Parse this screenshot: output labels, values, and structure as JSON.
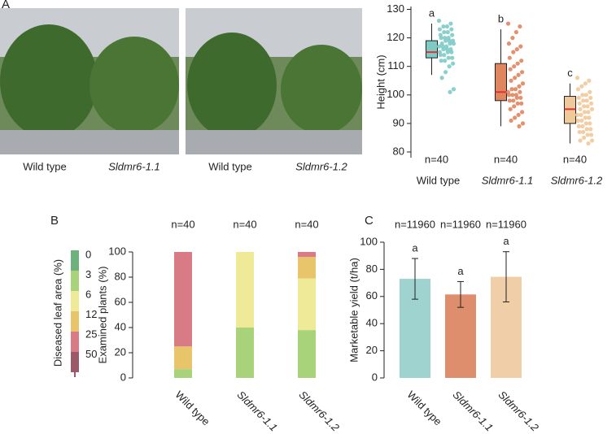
{
  "panel_labels": [
    "A",
    "B",
    "C"
  ],
  "photo_captions": [
    "Wild type",
    "Sldmr6-1.1",
    "Wild type",
    "Sldmr6-1.2"
  ],
  "chart_data": [
    {
      "type": "box",
      "ylabel": "Height (cm)",
      "categories": [
        "Wild type",
        "Sldmr6-1.1",
        "Sldmr6-1.2"
      ],
      "colors": [
        "#7ecbc6",
        "#e0865f",
        "#f0c99a"
      ],
      "median_color": "#e0303a",
      "boxes": [
        {
          "whisker_low": 107,
          "q1": 113,
          "median": 115,
          "q3": 119,
          "whisker_high": 125
        },
        {
          "whisker_low": 89,
          "q1": 98,
          "median": 101,
          "q3": 111,
          "whisker_high": 123
        },
        {
          "whisker_low": 83,
          "q1": 90,
          "median": 95,
          "q3": 99.5,
          "whisker_high": 104
        }
      ],
      "points": [
        [
          126,
          125,
          124,
          124,
          123,
          123,
          122,
          122,
          121,
          121,
          120,
          120,
          120,
          119,
          119,
          119,
          118,
          118,
          118,
          117,
          117,
          117,
          116,
          116,
          116,
          115,
          115,
          115,
          114,
          114,
          113,
          113,
          112,
          112,
          111,
          110,
          108,
          106,
          102,
          101
        ],
        [
          125,
          124,
          122,
          120,
          118,
          117,
          116,
          115,
          113,
          112,
          111,
          110,
          109,
          108,
          107,
          106,
          105,
          104,
          103,
          102,
          102,
          101,
          101,
          100,
          100,
          100,
          99,
          99,
          98,
          98,
          97,
          97,
          96,
          95,
          94,
          93,
          92,
          91,
          90,
          89
        ],
        [
          106,
          105,
          104,
          103,
          102,
          101,
          100,
          100,
          99,
          99,
          98,
          98,
          97,
          97,
          96,
          96,
          95,
          95,
          94,
          94,
          93,
          93,
          92,
          92,
          91,
          91,
          90,
          90,
          89,
          89,
          88,
          88,
          87,
          87,
          86,
          86,
          85,
          84,
          84,
          83
        ]
      ],
      "letters": [
        "a",
        "b",
        "c"
      ],
      "n_labels": [
        "n=40",
        "n=40",
        "n=40"
      ],
      "ylim": [
        78,
        131
      ],
      "yticks": [
        80,
        90,
        100,
        110,
        120,
        130
      ]
    },
    {
      "type": "stacked_bar",
      "ylabel": "Examined plants (%)",
      "categories": [
        "Wild type",
        "Sldmr6-1.1",
        "Sldmr6-1.2"
      ],
      "series": [
        {
          "color": "#a9d37a",
          "values": [
            7,
            40,
            38
          ]
        },
        {
          "color": "#eeea98",
          "values": [
            0,
            60,
            41
          ]
        },
        {
          "color": "#e8c46a",
          "values": [
            18,
            0,
            17
          ]
        },
        {
          "color": "#d97b85",
          "values": [
            75,
            0,
            4
          ]
        }
      ],
      "n_labels": [
        "n=40",
        "n=40",
        "n=40"
      ],
      "legend_title": "Diseased leaf area (%)",
      "legend_ticks": [
        0,
        3,
        6,
        12,
        25,
        50
      ],
      "legend_colors": [
        "#6db27c",
        "#a9d37a",
        "#eeea98",
        "#e8c46a",
        "#d97b85",
        "#9c5a68"
      ],
      "ylim": [
        0,
        100
      ],
      "yticks": [
        0,
        20,
        40,
        60,
        80,
        100
      ]
    },
    {
      "type": "bar",
      "ylabel": "Marketable yield (t/ha)",
      "categories": [
        "Wild type",
        "Sldmr6-1.1",
        "Sldmr6-1.2"
      ],
      "values": [
        73,
        61.5,
        74.5
      ],
      "errors": [
        15,
        9.5,
        18.5
      ],
      "colors": [
        "#9fd3cf",
        "#de8e6c",
        "#f0cfa8"
      ],
      "letters": [
        "a",
        "a",
        "a"
      ],
      "n_labels": [
        "n=11960",
        "n=11960",
        "n=11960"
      ],
      "ylim": [
        0,
        100
      ],
      "yticks": [
        0,
        20,
        40,
        60,
        80,
        100
      ]
    }
  ]
}
